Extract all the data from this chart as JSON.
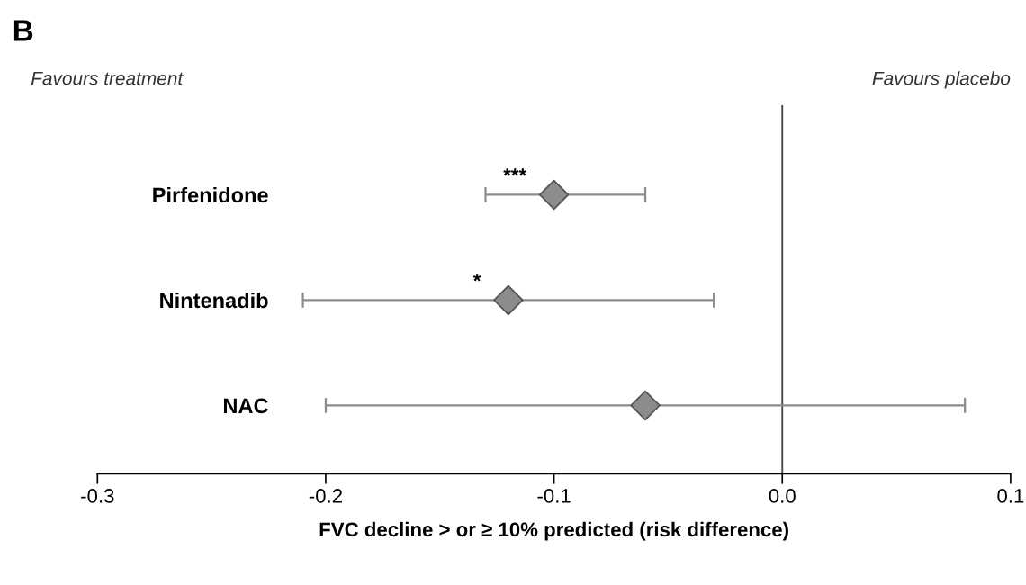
{
  "chart_data": {
    "type": "scatter",
    "orientation": "horizontal",
    "title": "B",
    "xlabel": "FVC decline > or ≥ 10% predicted (risk difference)",
    "categories": [
      "Pirfenidone",
      "Nintenadib",
      "NAC"
    ],
    "values": [
      -0.1,
      -0.12,
      -0.06
    ],
    "errors": [
      [
        -0.13,
        -0.06
      ],
      [
        -0.21,
        -0.03
      ],
      [
        -0.2,
        0.08
      ]
    ],
    "color": "#8c8c8c",
    "marker": "diamond",
    "xlim": [
      -0.3,
      0.1
    ],
    "xticks": [
      {
        "value": -0.3,
        "label": "-0.3"
      },
      {
        "value": -0.2,
        "label": "-0.2"
      },
      {
        "value": -0.1,
        "label": "-0.1"
      },
      {
        "value": 0,
        "label": "0.0"
      },
      {
        "value": 0.1,
        "label": "0.1"
      }
    ],
    "ref_lines": [
      {
        "axis": "x",
        "value": 0,
        "color": "#404040"
      }
    ],
    "annotations": [
      "Favours treatment",
      "Favours placebo",
      "***",
      "*"
    ],
    "grid": false
  }
}
